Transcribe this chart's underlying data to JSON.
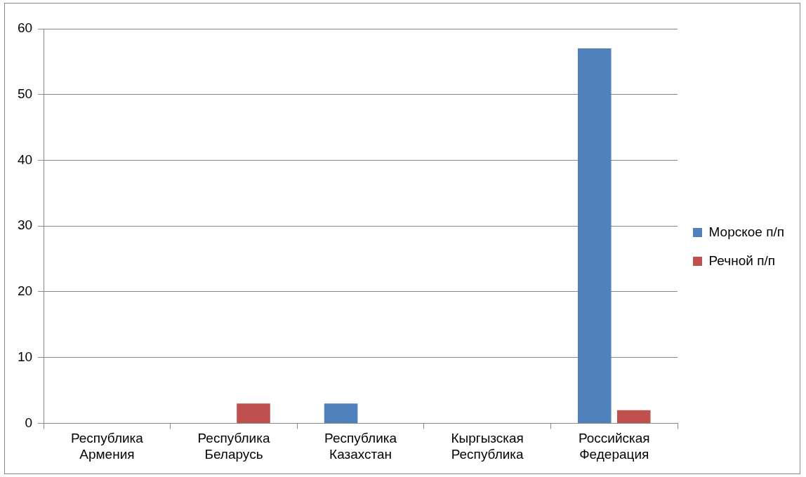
{
  "chart_data": {
    "type": "bar",
    "categories": [
      "Республика Армения",
      "Республика Беларусь",
      "Республика Казахстан",
      "Кыргызская Республика",
      "Российская Федерация"
    ],
    "series": [
      {
        "name": "Морское п/п",
        "color": "#4f81bd",
        "values": [
          0,
          0,
          3,
          0,
          57
        ]
      },
      {
        "name": "Речной п/п",
        "color": "#c0504d",
        "values": [
          0,
          3,
          0,
          0,
          2
        ]
      }
    ],
    "ylim": [
      0,
      60
    ],
    "yticks": [
      0,
      10,
      20,
      30,
      40,
      50,
      60
    ],
    "grid": "y",
    "legend": "right"
  }
}
